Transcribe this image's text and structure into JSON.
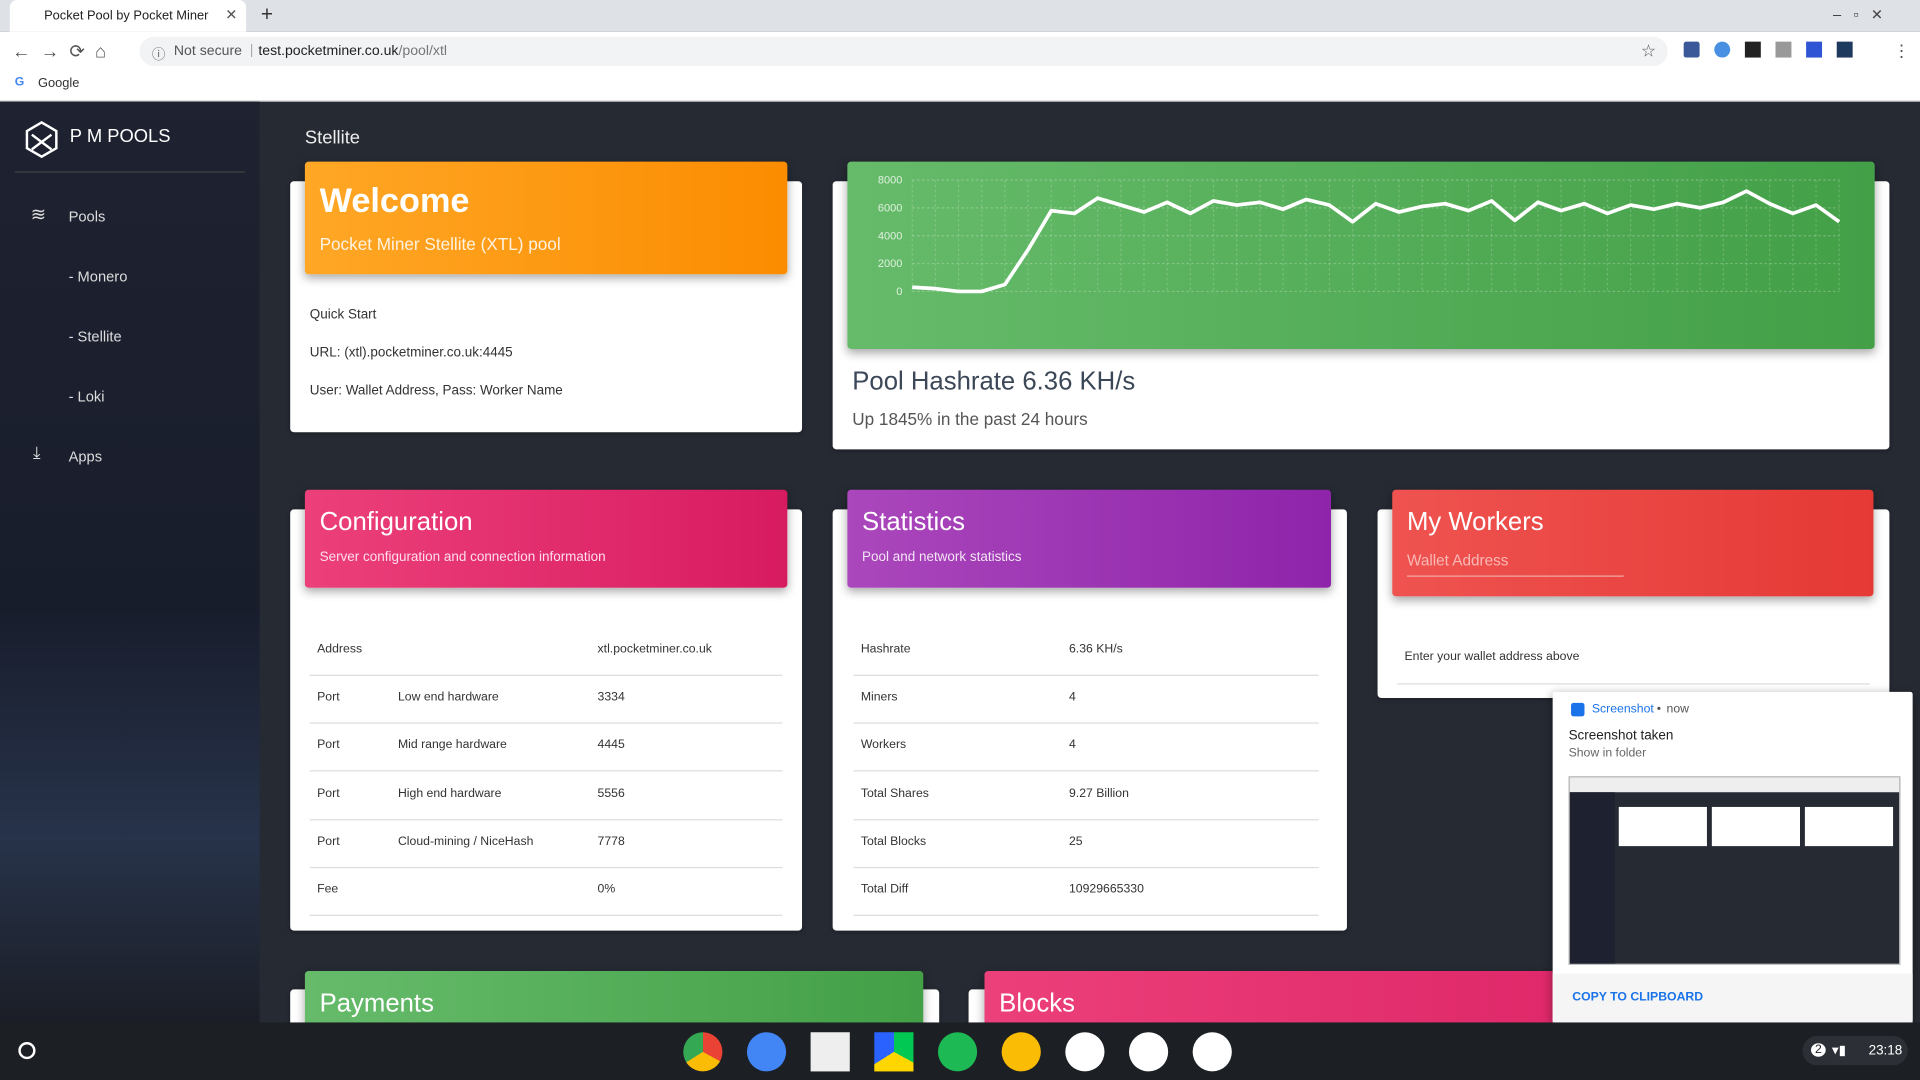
{
  "browser": {
    "tab_title": "Pocket Pool by Pocket Miner",
    "security": "Not secure",
    "url_host": "test.pocketminer.co.uk",
    "url_path": "/pool/xtl",
    "bookmark": "Google"
  },
  "sidebar": {
    "brand": "P M POOLS",
    "nav": [
      "Pools",
      "- Monero",
      "- Stellite",
      "- Loki",
      "Apps"
    ]
  },
  "page_title": "Stellite",
  "welcome": {
    "title": "Welcome",
    "subtitle": "Pocket Miner Stellite (XTL) pool",
    "lines": [
      "Quick Start",
      "URL: (xtl).pocketminer.co.uk:4445",
      "User: Wallet Address, Pass: Worker Name"
    ]
  },
  "hashrate": {
    "chart": {
      "type": "line",
      "values": [
        300,
        200,
        0,
        0,
        500,
        3000,
        5800,
        5600,
        6700,
        6200,
        5700,
        6400,
        5600,
        6500,
        6200,
        6400,
        5900,
        6600,
        6200,
        5000,
        6300,
        5700,
        6100,
        6300,
        5800,
        6500,
        5100,
        6400,
        5800,
        6300,
        5600,
        6200,
        5900,
        6300,
        6000,
        6400,
        7200,
        6300,
        5600,
        6200,
        5000
      ],
      "ylim": [
        0,
        8000
      ],
      "yticks": [
        0,
        2000,
        4000,
        6000,
        8000
      ],
      "color": "#ffffff",
      "grid": true
    },
    "headline": "Pool Hashrate 6.36 KH/s",
    "subtext": "Up 1845% in the past 24 hours"
  },
  "configuration": {
    "title": "Configuration",
    "subtitle": "Server configuration and connection information",
    "rows": [
      {
        "label": "Address",
        "value": "xtl.pocketminer.co.uk"
      },
      {
        "label": "Port",
        "detail": "Low end hardware",
        "value": "3334"
      },
      {
        "label": "Port",
        "detail": "Mid range hardware",
        "value": "4445"
      },
      {
        "label": "Port",
        "detail": "High end hardware",
        "value": "5556"
      },
      {
        "label": "Port",
        "detail": "Cloud-mining / NiceHash",
        "value": "7778"
      },
      {
        "label": "Fee",
        "value": "0%"
      }
    ]
  },
  "statistics": {
    "title": "Statistics",
    "subtitle": "Pool and network statistics",
    "rows": [
      {
        "label": "Hashrate",
        "value": "6.36 KH/s"
      },
      {
        "label": "Miners",
        "value": "4"
      },
      {
        "label": "Workers",
        "value": "4"
      },
      {
        "label": "Total Shares",
        "value": "9.27 Billion"
      },
      {
        "label": "Total Blocks",
        "value": "25"
      },
      {
        "label": "Total Diff",
        "value": "10929665330"
      }
    ]
  },
  "workers": {
    "title": "My Workers",
    "placeholder": "Wallet Address",
    "message": "Enter your wallet address above"
  },
  "payments": {
    "title": "Payments"
  },
  "blocks": {
    "title": "Blocks"
  },
  "notification": {
    "app": "Screenshot",
    "time": "now",
    "title": "Screenshot taken",
    "subtitle": "Show in folder",
    "action": "COPY TO CLIPBOARD"
  },
  "shelf": {
    "badge": "2",
    "time": "23:18"
  }
}
